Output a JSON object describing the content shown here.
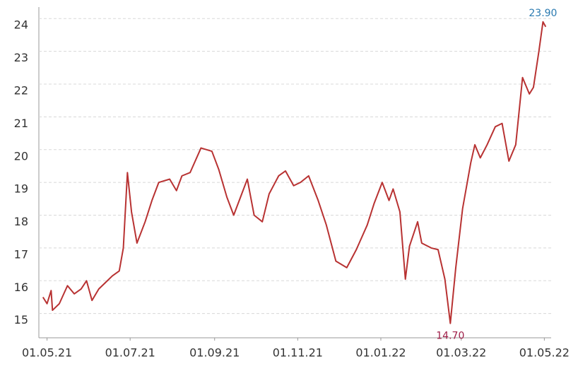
{
  "chart_data": {
    "type": "line",
    "x": [
      "2021-04-28",
      "2021-05-01",
      "2021-05-04",
      "2021-05-05",
      "2021-05-10",
      "2021-05-16",
      "2021-05-21",
      "2021-05-26",
      "2021-05-30",
      "2021-06-03",
      "2021-06-08",
      "2021-06-13",
      "2021-06-18",
      "2021-06-23",
      "2021-06-26",
      "2021-06-29",
      "2021-07-02",
      "2021-07-06",
      "2021-07-12",
      "2021-07-17",
      "2021-07-22",
      "2021-07-30",
      "2021-08-04",
      "2021-08-08",
      "2021-08-14",
      "2021-08-22",
      "2021-08-30",
      "2021-09-04",
      "2021-09-10",
      "2021-09-15",
      "2021-09-20",
      "2021-09-25",
      "2021-09-30",
      "2021-10-06",
      "2021-10-11",
      "2021-10-18",
      "2021-10-23",
      "2021-10-29",
      "2021-11-03",
      "2021-11-09",
      "2021-11-16",
      "2021-11-22",
      "2021-11-29",
      "2021-12-07",
      "2021-12-14",
      "2021-12-22",
      "2021-12-27",
      "2022-01-02",
      "2022-01-07",
      "2022-01-10",
      "2022-01-15",
      "2022-01-19",
      "2022-01-22",
      "2022-01-28",
      "2022-01-31",
      "2022-02-07",
      "2022-02-12",
      "2022-02-17",
      "2022-02-21",
      "2022-02-25",
      "2022-03-02",
      "2022-03-08",
      "2022-03-11",
      "2022-03-15",
      "2022-03-20",
      "2022-03-26",
      "2022-03-31",
      "2022-04-05",
      "2022-04-10",
      "2022-04-15",
      "2022-04-20",
      "2022-04-23",
      "2022-04-27",
      "2022-04-30",
      "2022-05-02"
    ],
    "series": [
      {
        "color": "#b83232",
        "values": [
          15.5,
          15.3,
          15.7,
          15.1,
          15.3,
          15.85,
          15.6,
          15.75,
          16.0,
          15.4,
          15.75,
          15.95,
          16.15,
          16.3,
          17.0,
          19.3,
          18.1,
          17.15,
          17.8,
          18.45,
          19.0,
          19.1,
          18.75,
          19.2,
          19.3,
          20.05,
          19.95,
          19.4,
          18.55,
          18.0,
          18.55,
          19.1,
          18.0,
          17.8,
          18.65,
          19.2,
          19.35,
          18.9,
          19.0,
          19.2,
          18.45,
          17.7,
          16.6,
          16.4,
          16.95,
          17.7,
          18.35,
          19.0,
          18.45,
          18.8,
          18.1,
          16.05,
          17.05,
          17.8,
          17.15,
          17.0,
          16.95,
          16.05,
          14.7,
          16.4,
          18.2,
          19.6,
          20.15,
          19.75,
          20.15,
          20.7,
          20.8,
          19.65,
          20.15,
          22.2,
          21.7,
          21.9,
          23.0,
          23.9,
          23.75
        ]
      }
    ],
    "annotations": [
      {
        "x": "2022-04-30",
        "value": 23.9,
        "label": "23.90",
        "color": "#2a7ab0"
      },
      {
        "x": "2022-02-21",
        "value": 14.7,
        "label": "14.70",
        "color": "#a0204a"
      }
    ],
    "xlim": [
      "2021-04-25",
      "2022-05-06"
    ],
    "xticks": [
      {
        "value": "2021-05-01",
        "label": "01.05.21"
      },
      {
        "value": "2021-07-01",
        "label": "01.07.21"
      },
      {
        "value": "2021-09-01",
        "label": "01.09.21"
      },
      {
        "value": "2021-11-01",
        "label": "01.11.21"
      },
      {
        "value": "2022-01-01",
        "label": "01.01.22"
      },
      {
        "value": "2022-03-01",
        "label": "01.03.22"
      },
      {
        "value": "2022-05-01",
        "label": "01.05.22"
      }
    ],
    "ylim": [
      14.26,
      24.35
    ],
    "yticks": [
      15,
      16,
      17,
      18,
      19,
      20,
      21,
      22,
      23,
      24
    ],
    "grid": true
  }
}
